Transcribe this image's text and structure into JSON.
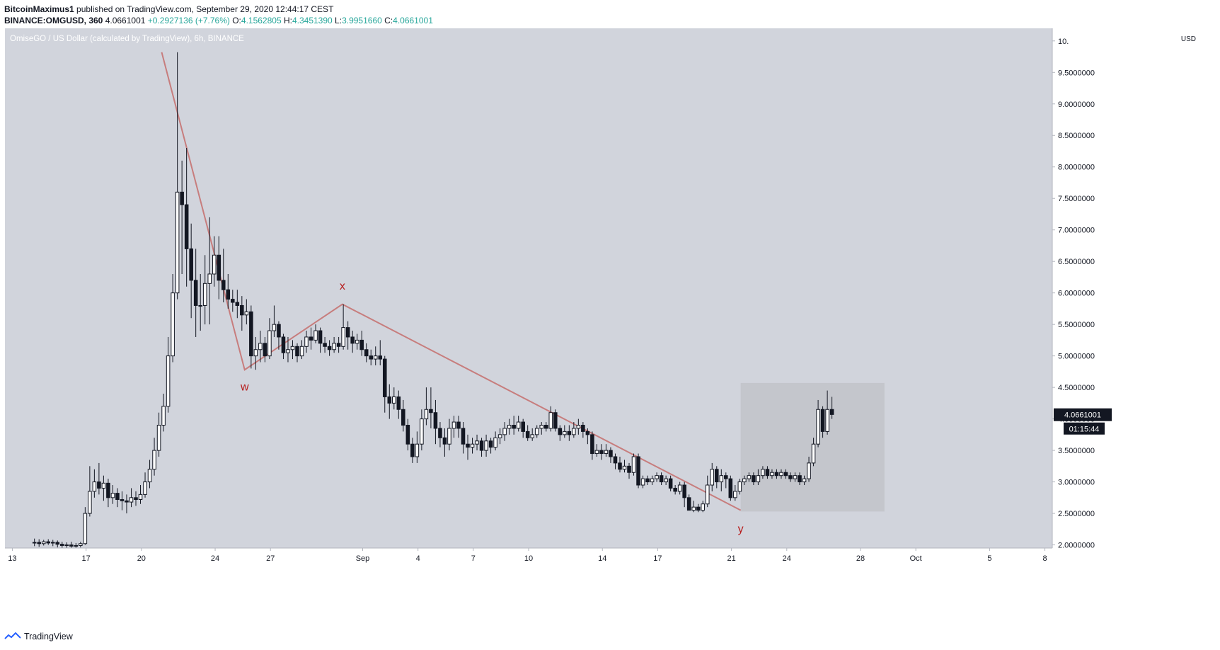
{
  "header": {
    "author": "BitcoinMaximus1",
    "published_text": "published on TradingView.com, September 29, 2020 12:44:17 CEST",
    "symbol": "BINANCE:OMGUSD, 360",
    "last": "4.0661001",
    "change": "+0.2927136 (+7.76%)",
    "o_label": "O:",
    "o_value": "4.1562805",
    "h_label": "H:",
    "h_value": "4.3451390",
    "l_label": "L:",
    "l_value": "3.9951660",
    "c_label": "C:",
    "c_value": "4.0661001"
  },
  "footer": {
    "brand": "TradingView",
    "logo_icon": "tradingview-logo-icon"
  },
  "colors": {
    "background": "#d1d4dc",
    "up_fill": "#ffffff",
    "down_fill": "#131722",
    "wick": "#131722",
    "wave_line": "#c77d7d",
    "wave_label": "#b71c1c",
    "highlight_box": "#c4c6cc",
    "price_tag_bg": "#131722",
    "price_tag_text": "#ffffff"
  },
  "chart_data": {
    "type": "candlestick",
    "title": "OmiseGO / US Dollar (calculated by TradingView), 6h, BINANCE",
    "currency": "USD",
    "y_axis_ticks": [
      "2.0000000",
      "2.5000000",
      "3.0000000",
      "3.5000000",
      "4.0000000",
      "4.5000000",
      "5.0000000",
      "5.5000000",
      "6.0000000",
      "6.5000000",
      "7.0000000",
      "7.5000000",
      "8.0000000",
      "8.5000000",
      "9.0000000",
      "9.5000000",
      "10."
    ],
    "x_axis_ticks": [
      {
        "label": "13",
        "day": 13
      },
      {
        "label": "17",
        "day": 17
      },
      {
        "label": "20",
        "day": 20
      },
      {
        "label": "24",
        "day": 24
      },
      {
        "label": "27",
        "day": 27
      },
      {
        "label": "Sep",
        "day": 32
      },
      {
        "label": "4",
        "day": 35
      },
      {
        "label": "7",
        "day": 38
      },
      {
        "label": "10",
        "day": 41
      },
      {
        "label": "14",
        "day": 45
      },
      {
        "label": "17",
        "day": 48
      },
      {
        "label": "21",
        "day": 52
      },
      {
        "label": "24",
        "day": 55
      },
      {
        "label": "28",
        "day": 59
      },
      {
        "label": "Oct",
        "day": 62
      },
      {
        "label": "5",
        "day": 66
      },
      {
        "label": "8",
        "day": 69
      }
    ],
    "x_range_days": [
      12.6,
      69.4
    ],
    "y_range": [
      1.95,
      10.2
    ],
    "last_price": "4.0661001",
    "countdown": "01:15:44",
    "wave_path": [
      {
        "day": 21.1,
        "price": 9.82
      },
      {
        "day": 25.6,
        "price": 4.78
      },
      {
        "day": 30.9,
        "price": 5.82
      },
      {
        "day": 52.5,
        "price": 2.55
      }
    ],
    "wave_labels": [
      {
        "text": "w",
        "day": 25.6,
        "price": 4.45
      },
      {
        "text": "x",
        "day": 30.9,
        "price": 6.05
      },
      {
        "text": "y",
        "day": 52.5,
        "price": 2.2
      }
    ],
    "highlight_box": {
      "day_start": 52.5,
      "day_end": 60.3,
      "price_low": 2.53,
      "price_high": 4.57
    },
    "candles": [
      [
        14.2,
        2.03,
        2.04,
        1.98,
        2.1
      ],
      [
        14.45,
        2.04,
        2.02,
        1.97,
        2.09
      ],
      [
        14.7,
        2.02,
        2.05,
        1.99,
        2.08
      ],
      [
        14.95,
        2.05,
        2.03,
        2.0,
        2.09
      ],
      [
        15.2,
        2.03,
        2.04,
        1.98,
        2.08
      ],
      [
        15.45,
        2.04,
        2.01,
        1.96,
        2.07
      ],
      [
        15.7,
        2.01,
        1.99,
        1.95,
        2.05
      ],
      [
        15.95,
        1.99,
        2.0,
        1.95,
        2.04
      ],
      [
        16.2,
        2.0,
        1.98,
        1.95,
        2.05
      ],
      [
        16.45,
        1.98,
        1.99,
        1.95,
        2.03
      ],
      [
        16.7,
        1.99,
        2.02,
        1.96,
        2.05
      ],
      [
        16.95,
        2.02,
        2.5,
        2.0,
        2.6
      ],
      [
        17.2,
        2.5,
        2.85,
        2.45,
        3.25
      ],
      [
        17.45,
        2.85,
        3.0,
        2.75,
        3.2
      ],
      [
        17.7,
        3.0,
        2.9,
        2.8,
        3.3
      ],
      [
        17.95,
        2.9,
        2.98,
        2.7,
        3.1
      ],
      [
        18.2,
        2.98,
        2.75,
        2.6,
        3.05
      ],
      [
        18.45,
        2.75,
        2.82,
        2.65,
        2.95
      ],
      [
        18.7,
        2.82,
        2.72,
        2.6,
        2.9
      ],
      [
        18.95,
        2.72,
        2.7,
        2.55,
        2.85
      ],
      [
        19.2,
        2.7,
        2.68,
        2.5,
        2.8
      ],
      [
        19.45,
        2.68,
        2.75,
        2.6,
        2.9
      ],
      [
        19.7,
        2.75,
        2.72,
        2.62,
        2.85
      ],
      [
        19.95,
        2.72,
        2.8,
        2.65,
        2.95
      ],
      [
        20.2,
        2.8,
        3.0,
        2.75,
        3.15
      ],
      [
        20.45,
        3.0,
        3.2,
        2.9,
        3.35
      ],
      [
        20.7,
        3.2,
        3.5,
        3.1,
        3.7
      ],
      [
        20.95,
        3.5,
        3.9,
        3.4,
        4.1
      ],
      [
        21.2,
        3.9,
        4.2,
        3.8,
        4.4
      ],
      [
        21.45,
        4.2,
        5.0,
        4.1,
        5.3
      ],
      [
        21.7,
        5.0,
        6.0,
        4.9,
        6.3
      ],
      [
        21.95,
        6.0,
        7.6,
        5.9,
        9.82
      ],
      [
        22.2,
        7.6,
        7.4,
        6.3,
        8.1
      ],
      [
        22.45,
        7.4,
        6.7,
        6.1,
        8.3
      ],
      [
        22.7,
        6.7,
        6.2,
        5.6,
        7.1
      ],
      [
        22.95,
        6.2,
        5.8,
        5.3,
        6.7
      ],
      [
        23.2,
        5.8,
        5.8,
        5.4,
        6.3
      ],
      [
        23.45,
        5.8,
        6.15,
        5.5,
        6.6
      ],
      [
        23.7,
        6.15,
        6.3,
        5.5,
        7.2
      ],
      [
        23.95,
        6.3,
        6.6,
        6.1,
        6.9
      ],
      [
        24.2,
        6.6,
        6.2,
        5.9,
        6.9
      ],
      [
        24.45,
        6.2,
        6.05,
        5.85,
        6.7
      ],
      [
        24.7,
        6.05,
        5.9,
        5.75,
        6.3
      ],
      [
        24.95,
        5.9,
        5.85,
        5.7,
        6.05
      ],
      [
        25.2,
        5.85,
        5.8,
        5.6,
        6.05
      ],
      [
        25.45,
        5.8,
        5.65,
        5.4,
        5.95
      ],
      [
        25.7,
        5.65,
        5.7,
        5.5,
        5.9
      ],
      [
        25.95,
        5.7,
        5.0,
        4.8,
        5.8
      ],
      [
        26.2,
        5.0,
        5.1,
        4.78,
        5.3
      ],
      [
        26.45,
        5.1,
        5.2,
        4.9,
        5.4
      ],
      [
        26.7,
        5.2,
        5.0,
        4.9,
        5.3
      ],
      [
        26.95,
        5.0,
        5.4,
        4.95,
        5.6
      ],
      [
        27.2,
        5.4,
        5.5,
        5.3,
        5.8
      ],
      [
        27.45,
        5.5,
        5.3,
        5.1,
        5.55
      ],
      [
        27.7,
        5.3,
        5.05,
        4.95,
        5.35
      ],
      [
        27.95,
        5.05,
        5.1,
        4.9,
        5.3
      ],
      [
        28.2,
        5.1,
        5.15,
        4.95,
        5.25
      ],
      [
        28.45,
        5.15,
        5.0,
        4.9,
        5.2
      ],
      [
        28.7,
        5.0,
        5.15,
        4.95,
        5.25
      ],
      [
        28.95,
        5.15,
        5.3,
        5.05,
        5.4
      ],
      [
        29.2,
        5.3,
        5.25,
        5.1,
        5.45
      ],
      [
        29.45,
        5.25,
        5.4,
        5.2,
        5.5
      ],
      [
        29.7,
        5.4,
        5.2,
        5.05,
        5.45
      ],
      [
        29.95,
        5.2,
        5.15,
        5.05,
        5.3
      ],
      [
        30.2,
        5.15,
        5.1,
        5.0,
        5.25
      ],
      [
        30.45,
        5.1,
        5.2,
        5.05,
        5.3
      ],
      [
        30.7,
        5.2,
        5.15,
        5.05,
        5.3
      ],
      [
        30.95,
        5.15,
        5.45,
        5.1,
        5.82
      ],
      [
        31.2,
        5.45,
        5.3,
        5.1,
        5.55
      ],
      [
        31.45,
        5.3,
        5.2,
        5.05,
        5.4
      ],
      [
        31.7,
        5.2,
        5.25,
        5.1,
        5.35
      ],
      [
        31.95,
        5.25,
        5.1,
        5.0,
        5.4
      ],
      [
        32.2,
        5.1,
        5.0,
        4.9,
        5.2
      ],
      [
        32.45,
        5.0,
        4.95,
        4.85,
        5.1
      ],
      [
        32.7,
        4.95,
        5.0,
        4.85,
        5.15
      ],
      [
        32.95,
        5.0,
        4.95,
        4.85,
        5.25
      ],
      [
        33.2,
        4.95,
        4.35,
        4.1,
        5.0
      ],
      [
        33.45,
        4.35,
        4.25,
        4.0,
        4.55
      ],
      [
        33.7,
        4.25,
        4.35,
        4.15,
        4.5
      ],
      [
        33.95,
        4.35,
        4.15,
        4.0,
        4.45
      ],
      [
        34.2,
        4.15,
        3.9,
        3.8,
        4.3
      ],
      [
        34.45,
        3.9,
        3.6,
        3.5,
        4.0
      ],
      [
        34.7,
        3.6,
        3.4,
        3.3,
        3.7
      ],
      [
        34.95,
        3.4,
        3.6,
        3.3,
        3.8
      ],
      [
        35.2,
        3.6,
        4.0,
        3.5,
        4.15
      ],
      [
        35.45,
        4.0,
        4.15,
        3.9,
        4.5
      ],
      [
        35.7,
        4.15,
        4.1,
        3.85,
        4.5
      ],
      [
        35.95,
        4.1,
        3.85,
        3.6,
        4.3
      ],
      [
        36.2,
        3.85,
        3.7,
        3.55,
        3.95
      ],
      [
        36.45,
        3.7,
        3.6,
        3.4,
        3.85
      ],
      [
        36.7,
        3.6,
        3.85,
        3.5,
        4.0
      ],
      [
        36.95,
        3.85,
        3.95,
        3.7,
        4.05
      ],
      [
        37.2,
        3.95,
        3.85,
        3.7,
        4.05
      ],
      [
        37.45,
        3.85,
        3.6,
        3.45,
        3.95
      ],
      [
        37.7,
        3.6,
        3.55,
        3.35,
        3.75
      ],
      [
        37.95,
        3.55,
        3.6,
        3.45,
        3.7
      ],
      [
        38.2,
        3.6,
        3.65,
        3.5,
        3.75
      ],
      [
        38.45,
        3.65,
        3.5,
        3.4,
        3.7
      ],
      [
        38.7,
        3.5,
        3.65,
        3.4,
        3.75
      ],
      [
        38.95,
        3.65,
        3.55,
        3.45,
        3.7
      ],
      [
        39.2,
        3.55,
        3.7,
        3.5,
        3.8
      ],
      [
        39.45,
        3.7,
        3.75,
        3.6,
        3.85
      ],
      [
        39.7,
        3.75,
        3.85,
        3.65,
        3.95
      ],
      [
        39.95,
        3.85,
        3.9,
        3.75,
        4.0
      ],
      [
        40.2,
        3.9,
        3.85,
        3.75,
        4.05
      ],
      [
        40.45,
        3.85,
        3.95,
        3.8,
        4.05
      ],
      [
        40.7,
        3.95,
        3.8,
        3.7,
        4.0
      ],
      [
        40.95,
        3.8,
        3.7,
        3.65,
        3.9
      ],
      [
        41.2,
        3.7,
        3.75,
        3.65,
        3.85
      ],
      [
        41.45,
        3.75,
        3.85,
        3.7,
        3.9
      ],
      [
        41.7,
        3.85,
        3.9,
        3.75,
        3.95
      ],
      [
        41.95,
        3.9,
        3.85,
        3.8,
        3.95
      ],
      [
        42.2,
        3.85,
        4.1,
        3.8,
        4.2
      ],
      [
        42.45,
        4.1,
        3.85,
        3.8,
        4.15
      ],
      [
        42.7,
        3.85,
        3.75,
        3.65,
        3.9
      ],
      [
        42.95,
        3.75,
        3.8,
        3.7,
        3.9
      ],
      [
        43.2,
        3.8,
        3.75,
        3.65,
        3.9
      ],
      [
        43.45,
        3.75,
        3.85,
        3.7,
        3.95
      ],
      [
        43.7,
        3.85,
        3.9,
        3.75,
        4.0
      ],
      [
        43.95,
        3.9,
        3.8,
        3.7,
        3.95
      ],
      [
        44.2,
        3.8,
        3.75,
        3.6,
        3.85
      ],
      [
        44.45,
        3.75,
        3.45,
        3.35,
        3.8
      ],
      [
        44.7,
        3.45,
        3.5,
        3.4,
        3.6
      ],
      [
        44.95,
        3.5,
        3.45,
        3.35,
        3.6
      ],
      [
        45.2,
        3.45,
        3.5,
        3.4,
        3.6
      ],
      [
        45.45,
        3.5,
        3.4,
        3.3,
        3.55
      ],
      [
        45.7,
        3.4,
        3.3,
        3.2,
        3.45
      ],
      [
        45.95,
        3.3,
        3.2,
        3.15,
        3.4
      ],
      [
        46.2,
        3.2,
        3.25,
        3.15,
        3.35
      ],
      [
        46.45,
        3.25,
        3.15,
        3.05,
        3.3
      ],
      [
        46.7,
        3.15,
        3.4,
        3.1,
        3.45
      ],
      [
        46.95,
        3.4,
        2.95,
        2.9,
        3.45
      ],
      [
        47.2,
        2.95,
        3.05,
        2.9,
        3.1
      ],
      [
        47.45,
        3.05,
        3.0,
        2.95,
        3.1
      ],
      [
        47.7,
        3.0,
        3.05,
        2.95,
        3.1
      ],
      [
        47.95,
        3.05,
        3.1,
        3.0,
        3.15
      ],
      [
        48.2,
        3.1,
        3.0,
        2.95,
        3.15
      ],
      [
        48.45,
        3.0,
        3.05,
        2.95,
        3.1
      ],
      [
        48.7,
        3.05,
        2.9,
        2.85,
        3.1
      ],
      [
        48.95,
        2.9,
        2.85,
        2.8,
        2.95
      ],
      [
        49.2,
        2.85,
        2.95,
        2.8,
        3.0
      ],
      [
        49.45,
        2.95,
        2.75,
        2.6,
        3.0
      ],
      [
        49.7,
        2.75,
        2.55,
        2.55,
        2.8
      ],
      [
        49.95,
        2.55,
        2.6,
        2.52,
        2.7
      ],
      [
        50.2,
        2.6,
        2.55,
        2.52,
        2.65
      ],
      [
        50.45,
        2.55,
        2.65,
        2.52,
        2.7
      ],
      [
        50.7,
        2.65,
        2.95,
        2.6,
        3.1
      ],
      [
        50.95,
        2.95,
        3.2,
        2.85,
        3.3
      ],
      [
        51.2,
        3.2,
        3.0,
        2.9,
        3.25
      ],
      [
        51.45,
        3.0,
        3.1,
        2.85,
        3.2
      ],
      [
        51.7,
        3.1,
        3.05,
        2.9,
        3.15
      ],
      [
        51.95,
        3.05,
        2.75,
        2.7,
        3.1
      ],
      [
        52.2,
        2.75,
        2.85,
        2.7,
        2.95
      ],
      [
        52.45,
        2.85,
        3.0,
        2.8,
        3.05
      ],
      [
        52.7,
        3.0,
        3.05,
        2.95,
        3.1
      ],
      [
        52.95,
        3.05,
        3.1,
        3.0,
        3.15
      ],
      [
        53.2,
        3.1,
        3.0,
        2.95,
        3.15
      ],
      [
        53.45,
        3.0,
        3.1,
        2.95,
        3.2
      ],
      [
        53.7,
        3.1,
        3.2,
        3.05,
        3.25
      ],
      [
        53.95,
        3.2,
        3.1,
        3.05,
        3.25
      ],
      [
        54.2,
        3.1,
        3.15,
        3.05,
        3.2
      ],
      [
        54.45,
        3.15,
        3.1,
        3.05,
        3.2
      ],
      [
        54.7,
        3.1,
        3.15,
        3.05,
        3.2
      ],
      [
        54.95,
        3.15,
        3.1,
        3.05,
        3.2
      ],
      [
        55.2,
        3.1,
        3.05,
        3.0,
        3.15
      ],
      [
        55.45,
        3.05,
        3.1,
        3.0,
        3.15
      ],
      [
        55.7,
        3.1,
        3.0,
        2.95,
        3.15
      ],
      [
        55.95,
        3.0,
        3.05,
        2.95,
        3.1
      ],
      [
        56.2,
        3.05,
        3.3,
        3.0,
        3.4
      ],
      [
        56.45,
        3.3,
        3.6,
        3.25,
        3.7
      ],
      [
        56.7,
        3.6,
        4.15,
        3.55,
        4.3
      ],
      [
        56.95,
        4.15,
        3.8,
        3.7,
        4.2
      ],
      [
        57.2,
        3.8,
        4.15,
        3.75,
        4.45
      ],
      [
        57.45,
        4.15,
        4.07,
        4.0,
        4.35
      ]
    ]
  }
}
